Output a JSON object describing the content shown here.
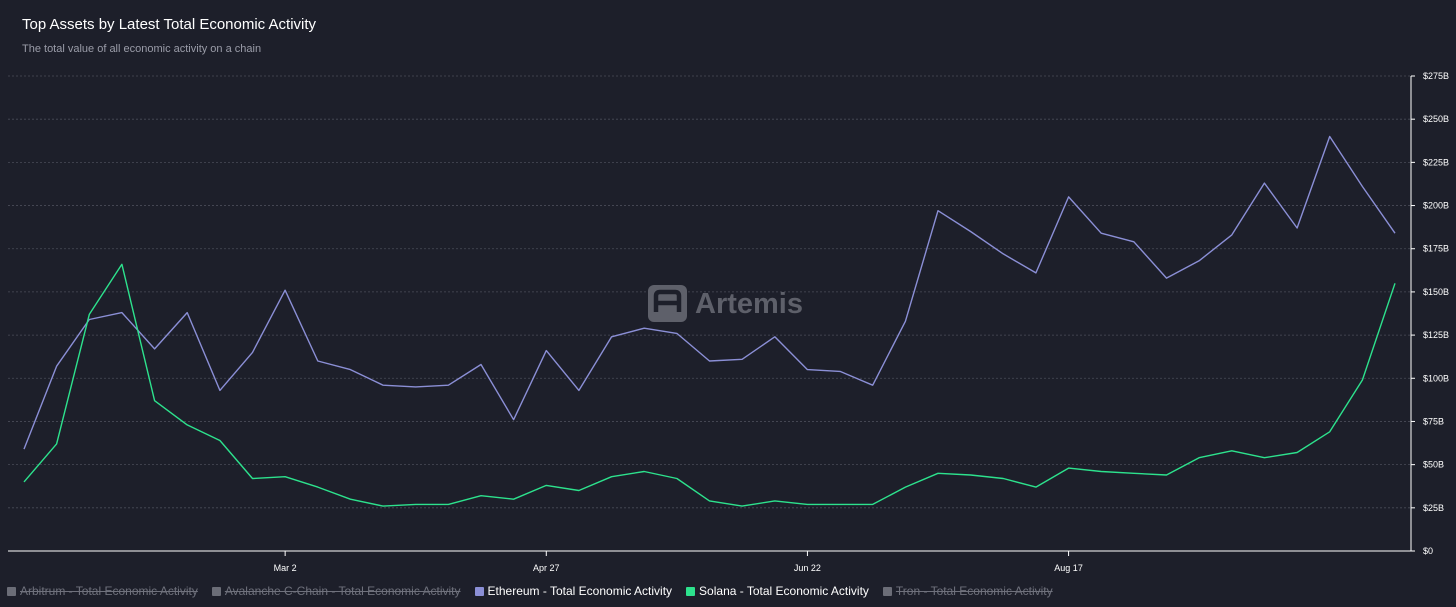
{
  "header": {
    "title": "Top Assets by Latest Total Economic Activity",
    "subtitle": "The total value of all economic activity on a chain"
  },
  "watermark": {
    "text": "Artemis"
  },
  "colors": {
    "background": "#1d1f2a",
    "grid": "#4a4c58",
    "axis": "#ffffff",
    "ethereum": "#8b8fd6",
    "solana": "#2de28d",
    "hidden_series": "#6b6d77"
  },
  "legend": [
    {
      "label": "Arbitrum - Total Economic Activity",
      "hidden": true,
      "color": "#6b6d77"
    },
    {
      "label": "Avalanche C-Chain - Total Economic Activity",
      "hidden": true,
      "color": "#6b6d77"
    },
    {
      "label": "Ethereum - Total Economic Activity",
      "hidden": false,
      "color": "#8b8fd6"
    },
    {
      "label": "Solana - Total Economic Activity",
      "hidden": false,
      "color": "#2de28d"
    },
    {
      "label": "Tron - Total Economic Activity",
      "hidden": true,
      "color": "#6b6d77"
    }
  ],
  "chart_data": {
    "type": "line",
    "title": "Top Assets by Latest Total Economic Activity",
    "subtitle": "The total value of all economic activity on a chain",
    "x_tick_labels": [
      "Mar 2",
      "Apr 27",
      "Jun 22",
      "Aug 17"
    ],
    "x_tick_indices": [
      8,
      16,
      24,
      32
    ],
    "y_tick_labels": [
      "$0",
      "$25B",
      "$50B",
      "$75B",
      "$100B",
      "$125B",
      "$150B",
      "$175B",
      "$200B",
      "$225B",
      "$250B",
      "$275B"
    ],
    "ylim": [
      0,
      275
    ],
    "y_unit": "B USD",
    "y_axis_side": "right",
    "grid": true,
    "legend_position": "bottom-left",
    "series": [
      {
        "name": "Ethereum - Total Economic Activity",
        "color": "#8b8fd6",
        "values": [
          59,
          107,
          134,
          138,
          117,
          138,
          93,
          115,
          151,
          110,
          105,
          96,
          95,
          96,
          108,
          76,
          116,
          93,
          124,
          129,
          126,
          110,
          111,
          124,
          105,
          104,
          96,
          133,
          197,
          185,
          172,
          161,
          205,
          184,
          179,
          158,
          168,
          183,
          213,
          187,
          240,
          211,
          184
        ]
      },
      {
        "name": "Solana - Total Economic Activity",
        "color": "#2de28d",
        "values": [
          40,
          62,
          137,
          166,
          87,
          73,
          64,
          42,
          43,
          37,
          30,
          26,
          27,
          27,
          32,
          30,
          38,
          35,
          43,
          46,
          42,
          29,
          26,
          29,
          27,
          27,
          27,
          37,
          45,
          44,
          42,
          37,
          48,
          46,
          45,
          44,
          54,
          58,
          54,
          57,
          69,
          99,
          155
        ]
      }
    ]
  }
}
